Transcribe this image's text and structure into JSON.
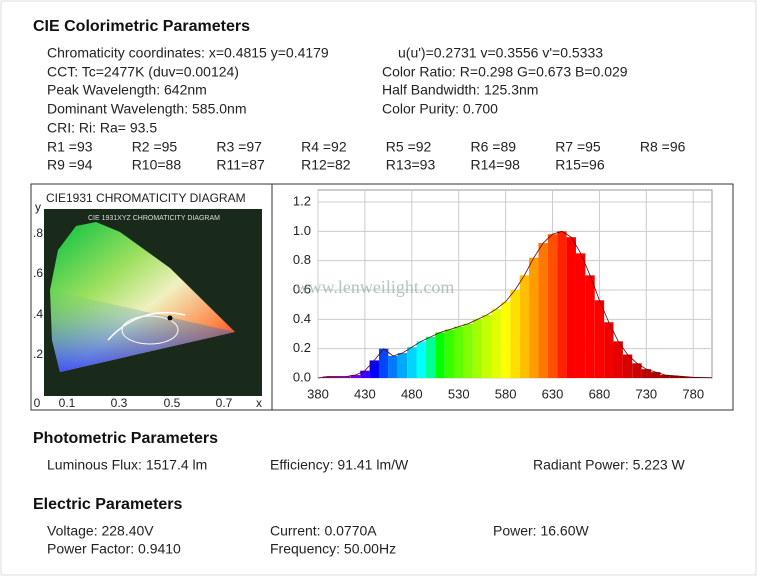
{
  "cie": {
    "title": "CIE Colorimetric Parameters",
    "chromaticity": "Chromaticity coordinates: x=0.4815 y=0.4179",
    "uv": "u(u')=0.2731 v=0.3556 v'=0.5333",
    "cct": "CCT: Tc=2477K (duv=0.00124)",
    "color_ratio": "Color Ratio: R=0.298  G=0.673  B=0.029",
    "peak": "Peak Wavelength: 642nm",
    "half_bandwidth": "Half Bandwidth: 125.3nm",
    "dominant": "Dominant Wavelength: 585.0nm",
    "purity": "Color Purity: 0.700",
    "cri": "CRI: Ri: Ra= 93.5",
    "r_values": [
      "R1 =93",
      "R2 =95",
      "R3 =97",
      "R4 =92",
      "R5 =92",
      "R6 =89",
      "R7 =95",
      "R8 =96",
      "R9 =94",
      "R10=88",
      "R11=87",
      "R12=82",
      "R13=93",
      "R14=98",
      "R15=96"
    ]
  },
  "cie_diagram": {
    "title": "CIE1931 CHROMATICITY DIAGRAM",
    "inner_title": "CIE 1931XYZ CHROMATICITY DIAGRAM",
    "x_labels": [
      "0",
      "0.1",
      "0.3",
      "0.5",
      "0.7",
      "x"
    ],
    "y_labels": [
      "y",
      ".8",
      ".6",
      ".4",
      ".2"
    ]
  },
  "watermark": "www.lenweilight.com",
  "chart_data": {
    "type": "spectrum",
    "x": [
      380,
      390,
      400,
      410,
      420,
      430,
      440,
      450,
      460,
      470,
      480,
      490,
      500,
      510,
      520,
      530,
      540,
      550,
      560,
      570,
      580,
      590,
      600,
      610,
      620,
      630,
      640,
      650,
      660,
      670,
      680,
      690,
      700,
      710,
      720,
      730,
      740,
      750,
      760,
      770,
      780,
      790,
      800
    ],
    "values": [
      0.0,
      0.01,
      0.01,
      0.01,
      0.02,
      0.05,
      0.12,
      0.2,
      0.15,
      0.17,
      0.21,
      0.25,
      0.28,
      0.31,
      0.33,
      0.35,
      0.37,
      0.4,
      0.43,
      0.47,
      0.52,
      0.6,
      0.7,
      0.82,
      0.92,
      0.98,
      1.0,
      0.96,
      0.85,
      0.7,
      0.53,
      0.38,
      0.25,
      0.16,
      0.1,
      0.06,
      0.04,
      0.02,
      0.015,
      0.01,
      0.005,
      0.003,
      0.002
    ],
    "xlim": [
      380,
      800
    ],
    "xticks": [
      380,
      430,
      480,
      530,
      580,
      630,
      680,
      730,
      780
    ],
    "ylim": [
      0,
      1.2
    ],
    "yticks": [
      {
        "value": 0,
        "label": "0.0"
      },
      0.2,
      0.4,
      0.6,
      0.8,
      {
        "value": 1,
        "label": "1.0"
      },
      1.2
    ],
    "grid": true
  },
  "photometric": {
    "title": "Photometric Parameters",
    "flux": "Luminous Flux: 1517.4 lm",
    "efficiency": "Efficiency: 91.41 lm/W",
    "radiant_power": "Radiant Power: 5.223 W"
  },
  "electric": {
    "title": "Electric Parameters",
    "voltage": "Voltage: 228.40V",
    "current": "Current: 0.0770A",
    "power": "Power: 16.60W",
    "power_factor": "Power Factor: 0.9410",
    "frequency": "Frequency: 50.00Hz"
  }
}
